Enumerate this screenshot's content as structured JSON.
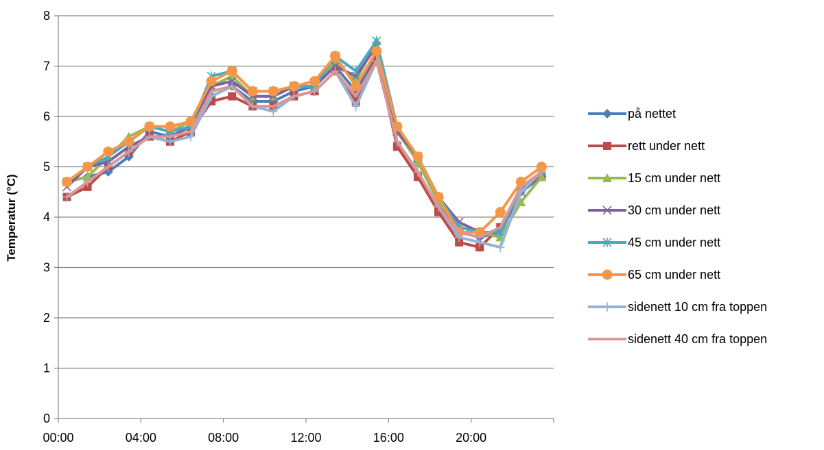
{
  "chart_data": {
    "type": "line",
    "ylabel": "Temperatur (°C)",
    "xlabel": "",
    "ylim": [
      0,
      8
    ],
    "yticks": [
      0,
      1,
      2,
      3,
      4,
      5,
      6,
      7,
      8
    ],
    "xlim": [
      "00:00",
      "24:00"
    ],
    "xtick_labels": [
      "00:00",
      "04:00",
      "08:00",
      "12:00",
      "16:00",
      "20:00"
    ],
    "grid": "horizontal",
    "legend_position": "right",
    "x": [
      "00:25",
      "01:25",
      "02:25",
      "03:25",
      "04:25",
      "05:25",
      "06:25",
      "07:25",
      "08:25",
      "09:25",
      "10:25",
      "11:25",
      "12:25",
      "13:25",
      "14:25",
      "15:25",
      "16:25",
      "17:25",
      "18:25",
      "19:25",
      "20:25",
      "21:25",
      "22:25",
      "23:25"
    ],
    "series": [
      {
        "name": "på nettet",
        "color": "#4a7ebb",
        "marker": "diamond",
        "values": [
          4.7,
          4.8,
          4.9,
          5.2,
          5.7,
          5.6,
          5.8,
          6.4,
          6.6,
          6.3,
          6.3,
          6.5,
          6.6,
          7.0,
          6.5,
          7.2,
          5.7,
          5.1,
          4.3,
          3.7,
          3.6,
          3.7,
          4.5,
          4.8
        ]
      },
      {
        "name": "rett under nett",
        "color": "#be4b48",
        "marker": "square",
        "values": [
          4.4,
          4.6,
          5.0,
          5.3,
          5.6,
          5.5,
          5.7,
          6.3,
          6.4,
          6.2,
          6.2,
          6.4,
          6.5,
          6.9,
          6.3,
          7.2,
          5.4,
          4.8,
          4.1,
          3.5,
          3.4,
          3.8,
          4.6,
          4.8
        ]
      },
      {
        "name": "15 cm under nett",
        "color": "#98b954",
        "marker": "triangle",
        "values": [
          4.7,
          4.8,
          5.2,
          5.6,
          5.8,
          5.7,
          5.9,
          6.6,
          6.8,
          6.4,
          6.4,
          6.6,
          6.6,
          7.1,
          6.7,
          7.5,
          5.7,
          5.1,
          4.3,
          3.8,
          3.7,
          3.6,
          4.3,
          4.8
        ]
      },
      {
        "name": "30 cm under nett",
        "color": "#7d60a0",
        "marker": "x",
        "values": [
          4.6,
          5.0,
          5.1,
          5.4,
          5.6,
          5.6,
          5.8,
          6.6,
          6.7,
          6.4,
          6.4,
          6.6,
          6.6,
          7.0,
          6.8,
          7.4,
          5.7,
          5.2,
          4.4,
          3.9,
          3.7,
          3.7,
          4.5,
          4.9
        ]
      },
      {
        "name": "45 cm under nett",
        "color": "#46aac5",
        "marker": "asterisk",
        "values": [
          4.7,
          5.0,
          5.2,
          5.5,
          5.8,
          5.7,
          5.8,
          6.8,
          6.9,
          6.5,
          6.5,
          6.6,
          6.6,
          7.2,
          6.9,
          7.5,
          5.8,
          5.2,
          4.4,
          3.8,
          3.7,
          3.7,
          4.6,
          4.9
        ]
      },
      {
        "name": "65 cm under nett",
        "color": "#f79646",
        "marker": "circle",
        "values": [
          4.7,
          5.0,
          5.3,
          5.5,
          5.8,
          5.8,
          5.9,
          6.7,
          6.9,
          6.5,
          6.5,
          6.6,
          6.7,
          7.2,
          6.6,
          7.3,
          5.8,
          5.2,
          4.4,
          3.7,
          3.7,
          4.1,
          4.7,
          5.0
        ]
      },
      {
        "name": "sidenett 10 cm fra toppen",
        "color": "#95b3d7",
        "marker": "plus",
        "values": [
          4.4,
          4.7,
          5.0,
          5.3,
          5.6,
          5.5,
          5.6,
          6.4,
          6.6,
          6.2,
          6.1,
          6.4,
          6.5,
          6.9,
          6.2,
          7.1,
          5.5,
          4.9,
          4.2,
          3.6,
          3.5,
          3.4,
          4.5,
          4.9
        ]
      },
      {
        "name": "sidenett 40 cm fra toppen",
        "color": "#d99795",
        "marker": "none",
        "values": [
          4.4,
          4.7,
          5.0,
          5.3,
          5.6,
          5.6,
          5.7,
          6.5,
          6.6,
          6.2,
          6.2,
          6.4,
          6.5,
          6.9,
          6.4,
          7.1,
          5.5,
          4.9,
          4.2,
          3.7,
          3.6,
          3.8,
          4.6,
          4.9
        ]
      }
    ]
  }
}
